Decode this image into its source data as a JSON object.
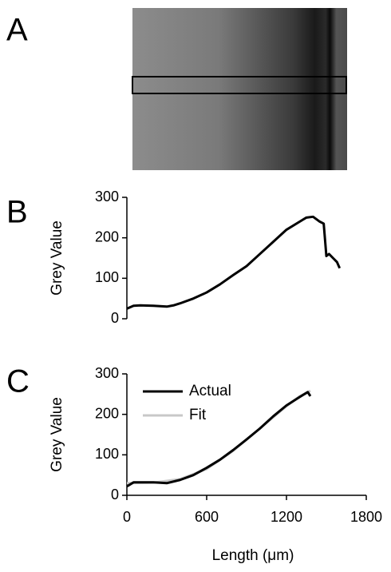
{
  "chart_data": [
    {
      "type": "image",
      "label": "A"
    },
    {
      "type": "line",
      "label": "B",
      "ylabel": "Grey Value",
      "xlim": [
        0,
        1800
      ],
      "ylim": [
        0,
        300
      ],
      "yticks": [
        0,
        100,
        200,
        300
      ],
      "series": [
        {
          "color": "#000000",
          "x": [
            0,
            50,
            100,
            200,
            300,
            350,
            400,
            500,
            600,
            700,
            800,
            900,
            1000,
            1100,
            1200,
            1300,
            1350,
            1400,
            1450,
            1480,
            1500,
            1520,
            1550,
            1580,
            1600
          ],
          "values": [
            25,
            32,
            33,
            32,
            30,
            33,
            38,
            50,
            65,
            85,
            108,
            130,
            160,
            190,
            220,
            240,
            250,
            252,
            240,
            235,
            155,
            160,
            150,
            140,
            125
          ]
        }
      ]
    },
    {
      "type": "line",
      "label": "C",
      "ylabel": "Grey Value",
      "xlabel": "Length (μm)",
      "xlim": [
        0,
        1800
      ],
      "ylim": [
        0,
        300
      ],
      "xticks": [
        0,
        600,
        1200,
        1800
      ],
      "yticks": [
        0,
        100,
        200,
        300
      ],
      "legend": "upper left",
      "series": [
        {
          "name": "Actual",
          "color": "#000000",
          "x": [
            0,
            50,
            200,
            300,
            400,
            500,
            600,
            700,
            800,
            900,
            1000,
            1100,
            1200,
            1300,
            1360,
            1380
          ],
          "values": [
            22,
            32,
            32,
            30,
            38,
            50,
            68,
            88,
            112,
            138,
            165,
            195,
            222,
            243,
            255,
            245
          ]
        },
        {
          "name": "Fit",
          "color": "#c8c8c8",
          "x": [
            0,
            200,
            400,
            600,
            800,
            1000,
            1200,
            1300,
            1380
          ],
          "values": [
            30,
            31,
            40,
            65,
            110,
            165,
            220,
            245,
            258
          ]
        }
      ]
    }
  ]
}
